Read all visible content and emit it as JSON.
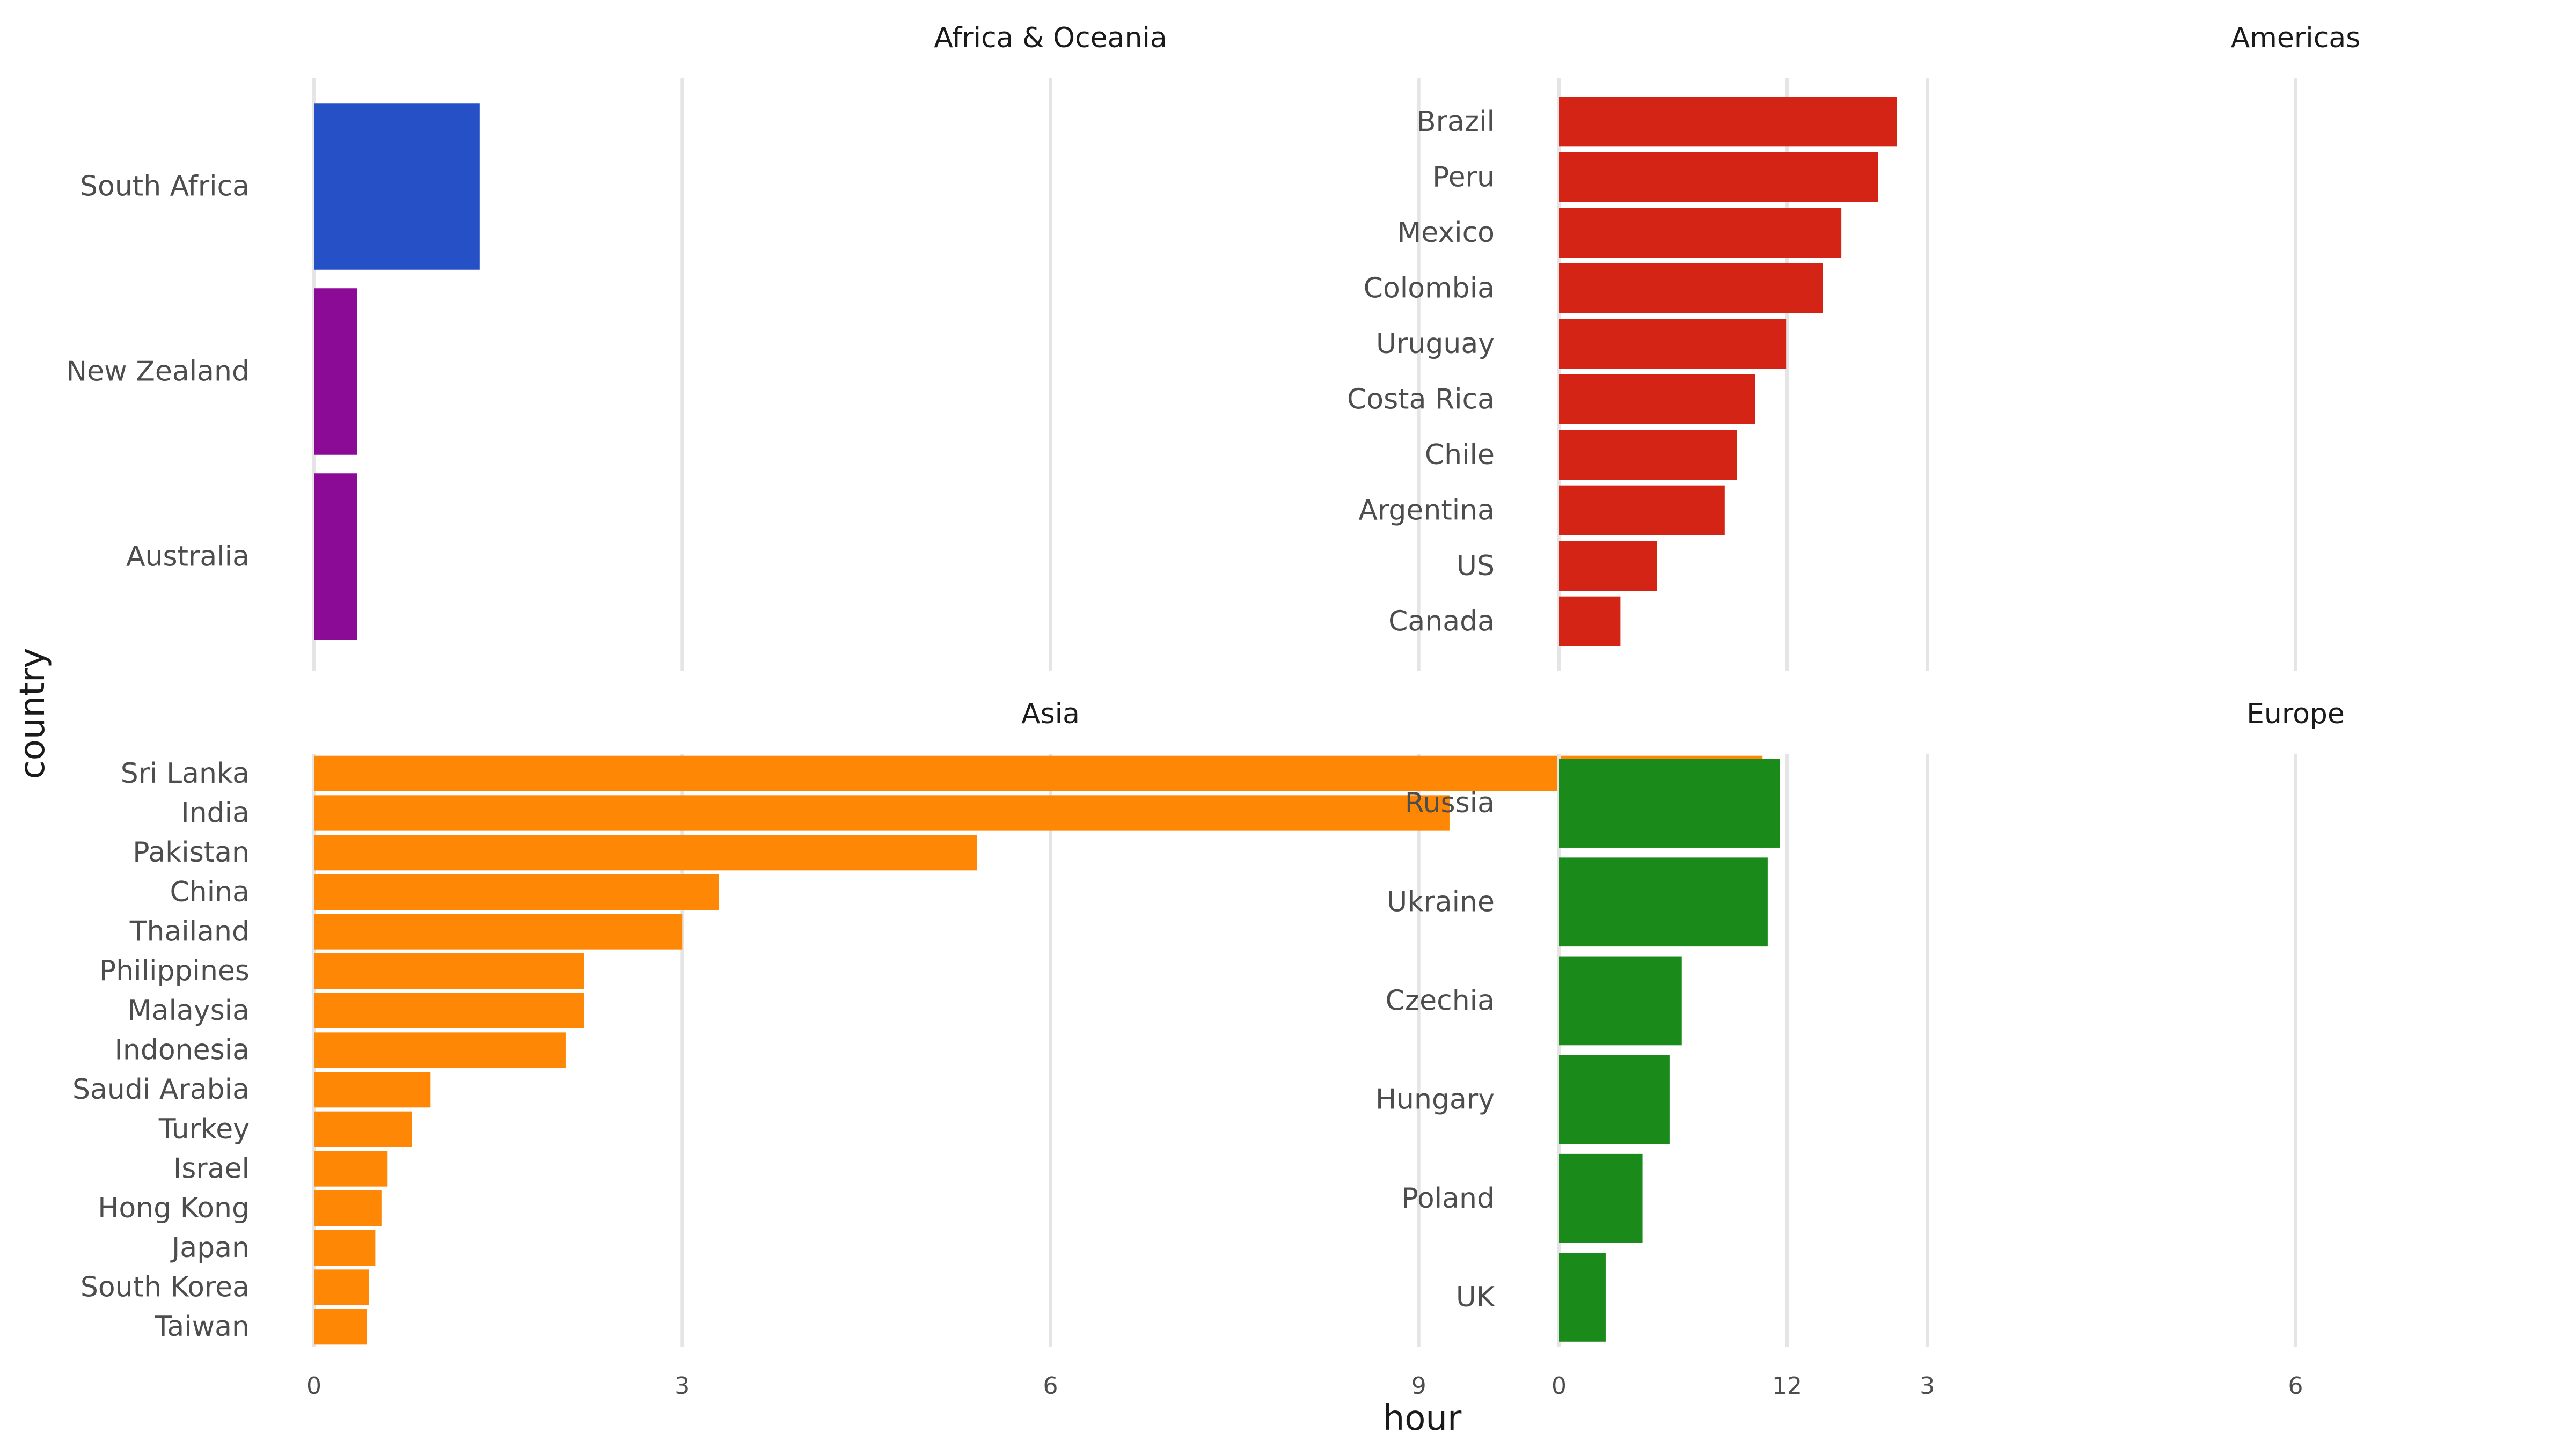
{
  "chart_data": {
    "type": "bar",
    "orientation": "horizontal",
    "xlabel": "hour",
    "ylabel": "country",
    "xlim": [
      0,
      12
    ],
    "xticks": [
      0,
      3,
      6,
      9,
      12
    ],
    "grid": "vertical major only",
    "facets": [
      {
        "title": "Africa & Oceania",
        "categories": [
          "South Africa",
          "New Zealand",
          "Australia"
        ],
        "values": [
          1.35,
          0.35,
          0.35
        ],
        "colors": [
          "#2650C5",
          "#8B0A96",
          "#8B0A96"
        ]
      },
      {
        "title": "Americas",
        "categories": [
          "Brazil",
          "Peru",
          "Mexico",
          "Colombia",
          "Uruguay",
          "Costa Rica",
          "Chile",
          "Argentina",
          "US",
          "Canada"
        ],
        "values": [
          2.75,
          2.6,
          2.3,
          2.15,
          1.85,
          1.6,
          1.45,
          1.35,
          0.8,
          0.5
        ],
        "colors": [
          "#D42415"
        ]
      },
      {
        "title": "Asia",
        "categories": [
          "Sri Lanka",
          "India",
          "Pakistan",
          "China",
          "Thailand",
          "Philippines",
          "Malaysia",
          "Indonesia",
          "Saudi Arabia",
          "Turkey",
          "Israel",
          "Hong Kong",
          "Japan",
          "South Korea",
          "Taiwan"
        ],
        "values": [
          11.8,
          9.25,
          5.4,
          3.3,
          3.0,
          2.2,
          2.2,
          2.05,
          0.95,
          0.8,
          0.6,
          0.55,
          0.5,
          0.45,
          0.43
        ],
        "colors": [
          "#FF8706"
        ]
      },
      {
        "title": "Europe",
        "categories": [
          "Russia",
          "Ukraine",
          "Czechia",
          "Hungary",
          "Poland",
          "UK"
        ],
        "values": [
          1.8,
          1.7,
          1.0,
          0.9,
          0.68,
          0.38
        ],
        "colors": [
          "#1A8A1A"
        ]
      }
    ]
  }
}
